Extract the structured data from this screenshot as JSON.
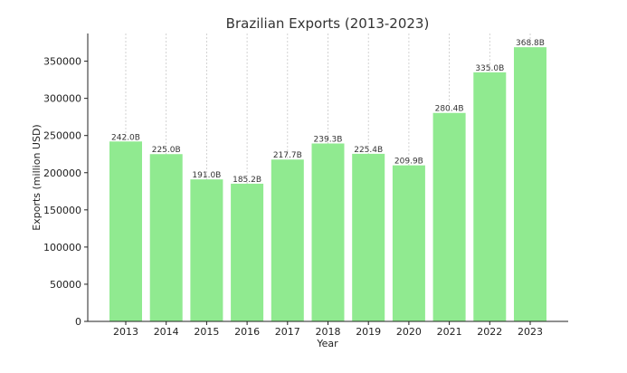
{
  "chart_data": {
    "type": "bar",
    "title": "Brazilian Exports (2013-2023)",
    "xlabel": "Year",
    "ylabel": "Exports (million USD)",
    "categories": [
      "2013",
      "2014",
      "2015",
      "2016",
      "2017",
      "2018",
      "2019",
      "2020",
      "2021",
      "2022",
      "2023"
    ],
    "values": [
      242000,
      225000,
      191000,
      185200,
      217700,
      239300,
      225400,
      209900,
      280400,
      335000,
      368800
    ],
    "data_labels": [
      "242.0B",
      "225.0B",
      "191.0B",
      "185.2B",
      "217.7B",
      "239.3B",
      "225.4B",
      "209.9B",
      "280.4B",
      "335.0B",
      "368.8B"
    ],
    "ylim": [
      0,
      387240
    ],
    "yticks": [
      0,
      50000,
      100000,
      150000,
      200000,
      250000,
      300000,
      350000
    ],
    "ytick_labels": [
      "0",
      "50000",
      "100000",
      "150000",
      "200000",
      "250000",
      "300000",
      "350000"
    ],
    "grid": "vertical dashed",
    "bar_color": "#90ea90"
  }
}
